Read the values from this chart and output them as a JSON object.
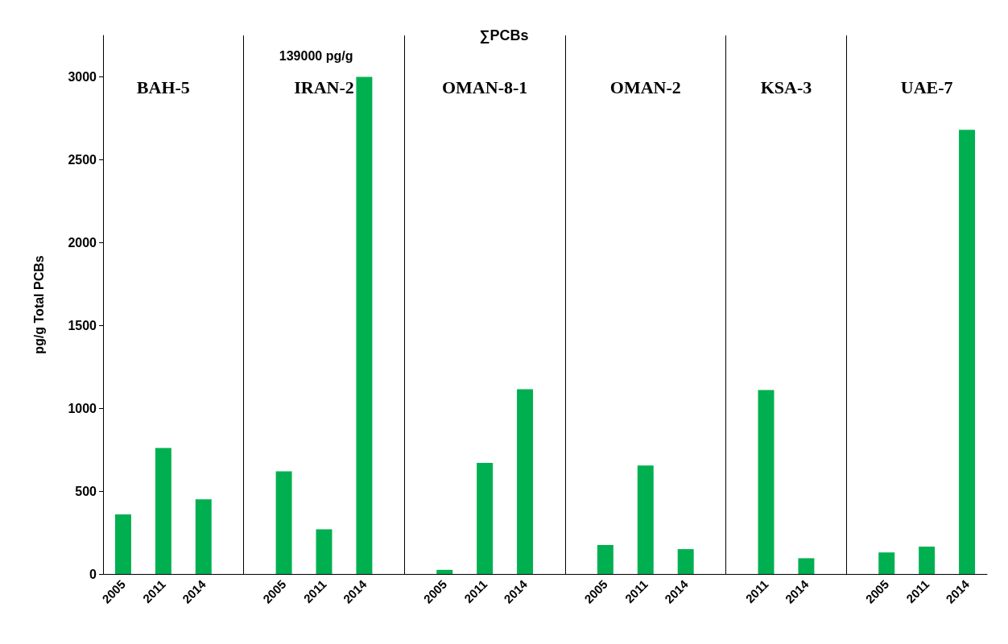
{
  "chart_data": {
    "type": "bar",
    "title": "∑PCBs",
    "ylabel": "pg/g Total PCBs",
    "categories": [
      "2005",
      "2011",
      "2014",
      null,
      "2005",
      "2011",
      "2014",
      null,
      "2005",
      "2011",
      "2014",
      null,
      "2005",
      "2011",
      "2014",
      null,
      "2011",
      "2014",
      null,
      "2005",
      "2011",
      "2014"
    ],
    "values": [
      360,
      760,
      450,
      null,
      620,
      270,
      3000,
      null,
      25,
      670,
      1115,
      null,
      175,
      655,
      150,
      null,
      1110,
      95,
      null,
      130,
      165,
      2680
    ],
    "color": "#00b050",
    "annotations": [
      "BAH-5",
      "IRAN-2",
      "OMAN-8-1",
      "OMAN-2",
      "KSA-3",
      "UAE-7",
      "139000 pg/g"
    ],
    "ylim": [
      0,
      3250
    ],
    "yticks": [
      0,
      500,
      1000,
      1500,
      2000,
      2500,
      3000
    ],
    "grid": false
  }
}
